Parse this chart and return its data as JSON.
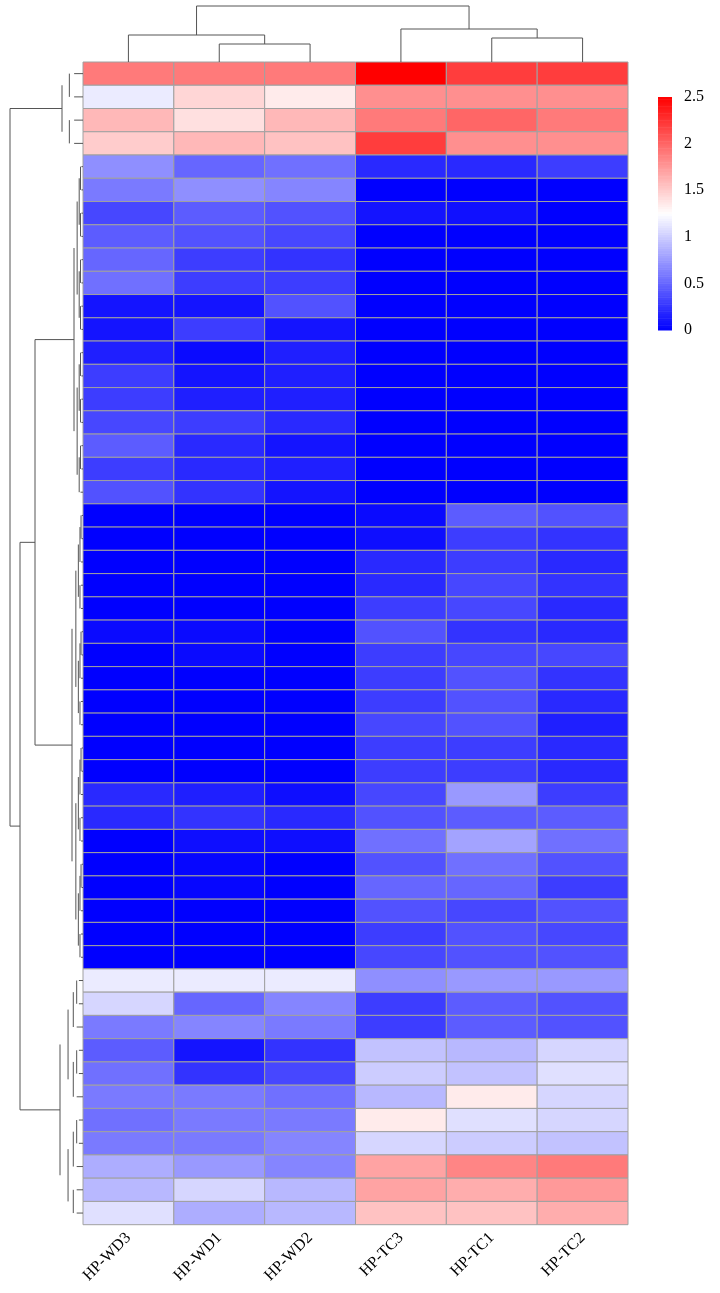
{
  "chart_data": {
    "type": "heatmap",
    "categories": [
      "HP-WD3",
      "HP-WD1",
      "HP-WD2",
      "HP-TC3",
      "HP-TC1",
      "HP-TC2"
    ],
    "y_categories": [
      null,
      null,
      null,
      null,
      null,
      null,
      null,
      null,
      null,
      null,
      null,
      null,
      null,
      null,
      null,
      null,
      null,
      null,
      null,
      null,
      null,
      null,
      null,
      null,
      null,
      null,
      null,
      null,
      null,
      null,
      null,
      null,
      null,
      null,
      null,
      null,
      null,
      null,
      null,
      null,
      null,
      null,
      null,
      null,
      null,
      null,
      null,
      null,
      null,
      null
    ],
    "clim": [
      0,
      2.5
    ],
    "cticks": [
      0,
      0.5,
      1,
      1.5,
      2,
      2.5
    ],
    "cells": [
      [
        1.9,
        1.9,
        1.9,
        2.5,
        2.2,
        2.2
      ],
      [
        1.15,
        1.45,
        1.35,
        1.8,
        1.8,
        1.8
      ],
      [
        1.6,
        1.4,
        1.6,
        1.9,
        2.0,
        1.9
      ],
      [
        1.5,
        1.6,
        1.55,
        2.2,
        1.8,
        1.8
      ],
      [
        0.7,
        0.5,
        0.55,
        0.2,
        0.2,
        0.3
      ],
      [
        0.6,
        0.7,
        0.65,
        0,
        0,
        0
      ],
      [
        0.35,
        0.45,
        0.4,
        0.1,
        0.08,
        0
      ],
      [
        0.45,
        0.4,
        0.35,
        0,
        0,
        0
      ],
      [
        0.5,
        0.3,
        0.25,
        0,
        0,
        0
      ],
      [
        0.55,
        0.3,
        0.3,
        0,
        0,
        0
      ],
      [
        0.1,
        0.1,
        0.4,
        0,
        0,
        0
      ],
      [
        0.1,
        0.3,
        0.1,
        0,
        0,
        0
      ],
      [
        0.15,
        0.05,
        0.15,
        0,
        0,
        0
      ],
      [
        0.3,
        0.1,
        0.15,
        0,
        0,
        0
      ],
      [
        0.3,
        0.15,
        0.15,
        0,
        0,
        0
      ],
      [
        0.35,
        0.3,
        0.2,
        0,
        0,
        0
      ],
      [
        0.45,
        0.2,
        0.1,
        0,
        0,
        0
      ],
      [
        0.3,
        0.2,
        0.15,
        0,
        0,
        0
      ],
      [
        0.4,
        0.25,
        0.1,
        0,
        0,
        0
      ],
      [
        0,
        0,
        0,
        0.05,
        0.45,
        0.4
      ],
      [
        0,
        0,
        0,
        0.07,
        0.3,
        0.25
      ],
      [
        0,
        0,
        0,
        0.2,
        0.3,
        0.2
      ],
      [
        0,
        0,
        0,
        0.2,
        0.35,
        0.25
      ],
      [
        0,
        0,
        0,
        0.3,
        0.35,
        0.2
      ],
      [
        0.05,
        0.05,
        0,
        0.4,
        0.25,
        0.2
      ],
      [
        0,
        0.05,
        0,
        0.3,
        0.35,
        0.35
      ],
      [
        0,
        0,
        0,
        0.3,
        0.4,
        0.25
      ],
      [
        0,
        0,
        0,
        0.3,
        0.4,
        0.2
      ],
      [
        0,
        0,
        0,
        0.35,
        0.4,
        0.15
      ],
      [
        0,
        0,
        0,
        0.3,
        0.3,
        0.2
      ],
      [
        0,
        0,
        0,
        0.3,
        0.3,
        0.2
      ],
      [
        0.2,
        0.15,
        0.07,
        0.35,
        0.75,
        0.3
      ],
      [
        0.2,
        0.25,
        0.2,
        0.4,
        0.45,
        0.45
      ],
      [
        0,
        0.07,
        0.07,
        0.55,
        0.8,
        0.55
      ],
      [
        0,
        0.03,
        0,
        0.4,
        0.55,
        0.4
      ],
      [
        0,
        0.03,
        0,
        0.5,
        0.5,
        0.3
      ],
      [
        0,
        0,
        0,
        0.4,
        0.35,
        0.4
      ],
      [
        0,
        0,
        0,
        0.3,
        0.4,
        0.35
      ],
      [
        0,
        0,
        0,
        0.35,
        0.4,
        0.4
      ],
      [
        1.15,
        1.15,
        1.15,
        0.7,
        0.75,
        0.75
      ],
      [
        1.05,
        0.5,
        0.65,
        0.3,
        0.45,
        0.4
      ],
      [
        0.6,
        0.65,
        0.6,
        0.3,
        0.45,
        0.4
      ],
      [
        0.45,
        0.1,
        0.25,
        0.95,
        0.9,
        1.05
      ],
      [
        0.55,
        0.25,
        0.35,
        1.0,
        0.95,
        1.1
      ],
      [
        0.6,
        0.6,
        0.55,
        0.9,
        1.35,
        1.05
      ],
      [
        0.55,
        0.6,
        0.6,
        1.35,
        1.1,
        1.05
      ],
      [
        0.6,
        0.6,
        0.65,
        1.05,
        1.0,
        0.95
      ],
      [
        0.85,
        0.75,
        0.65,
        1.7,
        1.85,
        1.9
      ],
      [
        0.9,
        1.05,
        0.9,
        1.7,
        1.65,
        1.75
      ],
      [
        1.1,
        0.85,
        0.9,
        1.55,
        1.55,
        1.65
      ]
    ]
  }
}
